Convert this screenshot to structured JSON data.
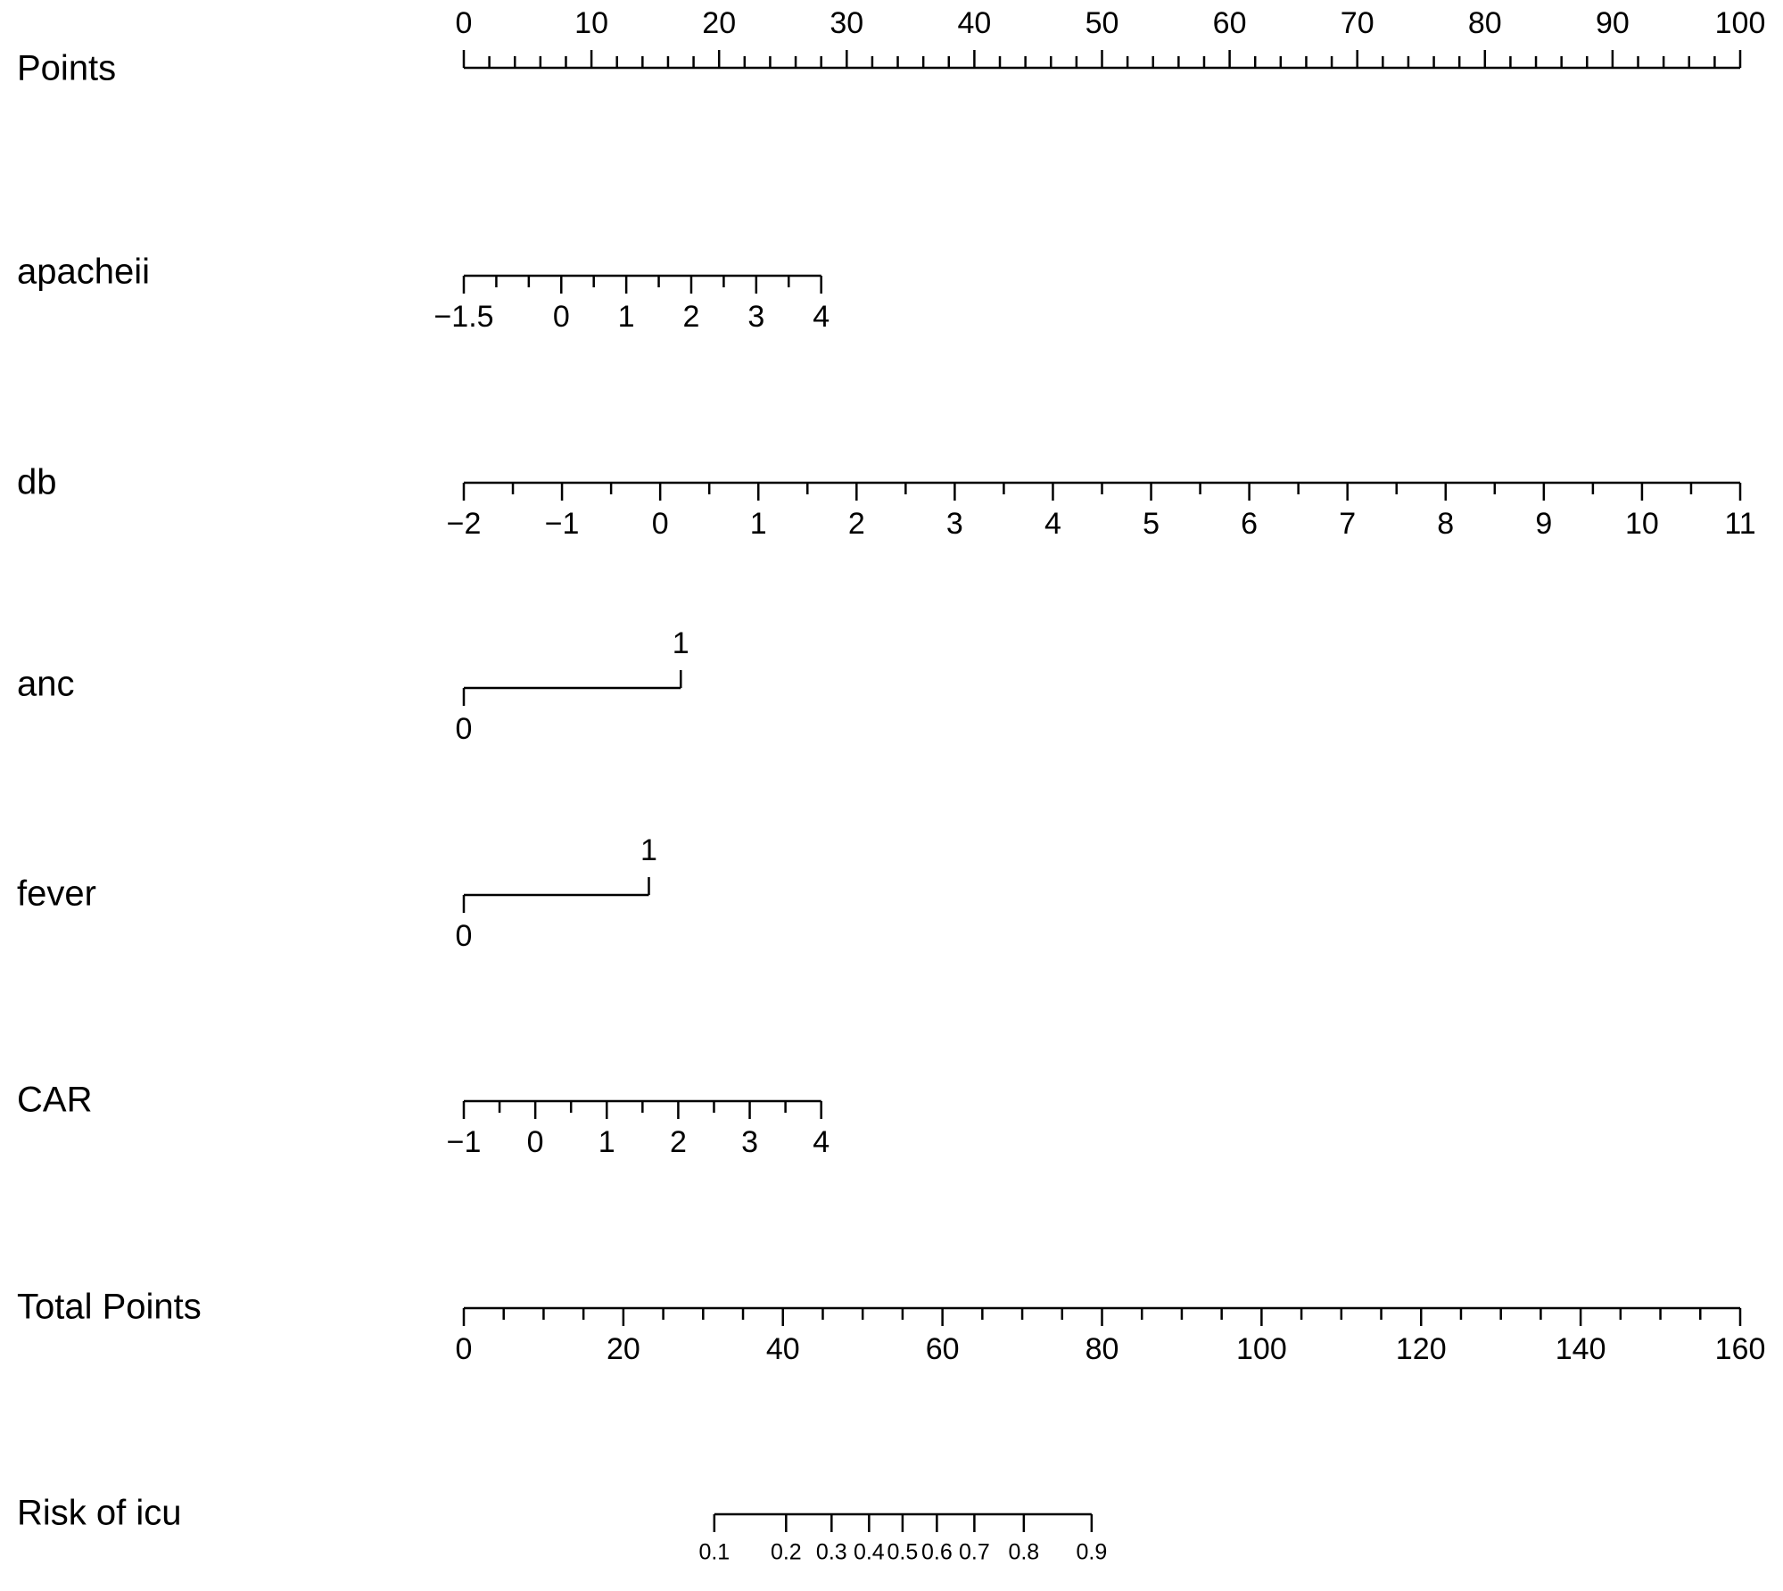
{
  "chart_data": {
    "type": "nomogram",
    "axes": [
      {
        "label": "Points",
        "scale_axis": 0,
        "label_side": "above",
        "xlim": [
          0,
          100
        ],
        "ticks": [
          0,
          10,
          20,
          30,
          40,
          50,
          60,
          70,
          80,
          90,
          100
        ],
        "minor_ticks": [
          2,
          4,
          6,
          8,
          12,
          14,
          16,
          18,
          22,
          24,
          26,
          28,
          32,
          34,
          36,
          38,
          42,
          44,
          46,
          48,
          52,
          54,
          56,
          58,
          62,
          64,
          66,
          68,
          72,
          74,
          76,
          78,
          82,
          84,
          86,
          88,
          92,
          94,
          96,
          98
        ]
      },
      {
        "label": "apacheii",
        "scale_axis": 0,
        "label_side": "below",
        "xlim": [
          -1.5,
          4
        ],
        "points_lim": [
          0,
          28
        ],
        "ticks": [
          {
            "value": -1.5,
            "label": "−1.5"
          },
          0,
          1,
          2,
          3,
          4
        ],
        "minor_ticks": [
          -1,
          -0.5,
          0.5,
          1.5,
          2.5,
          3.5
        ]
      },
      {
        "label": "db",
        "scale_axis": 0,
        "label_side": "below",
        "xlim": [
          -2,
          11
        ],
        "points_lim": [
          0,
          100
        ],
        "ticks": [
          {
            "value": -2,
            "label": "−2"
          },
          {
            "value": -1,
            "label": "−1"
          },
          0,
          1,
          2,
          3,
          4,
          5,
          6,
          7,
          8,
          9,
          10,
          11
        ],
        "minor_ticks": [
          -1.5,
          -0.5,
          0.5,
          1.5,
          2.5,
          3.5,
          4.5,
          5.5,
          6.5,
          7.5,
          8.5,
          9.5,
          10.5
        ]
      },
      {
        "label": "anc",
        "scale_axis": 0,
        "label_side": "alternate",
        "xlim": [
          0,
          1
        ],
        "points_lim": [
          0,
          17
        ],
        "ticks": [
          0,
          1
        ],
        "minor_ticks": []
      },
      {
        "label": "fever",
        "scale_axis": 0,
        "label_side": "alternate",
        "xlim": [
          0,
          1
        ],
        "points_lim": [
          0,
          14.5
        ],
        "ticks": [
          0,
          1
        ],
        "minor_ticks": []
      },
      {
        "label": "CAR",
        "scale_axis": 0,
        "label_side": "below",
        "xlim": [
          -1,
          4
        ],
        "points_lim": [
          0,
          28
        ],
        "ticks": [
          {
            "value": -1,
            "label": "−1"
          },
          0,
          1,
          2,
          3,
          4
        ],
        "minor_ticks": [
          -0.5,
          0.5,
          1.5,
          2.5,
          3.5
        ]
      },
      {
        "label": "Total Points",
        "scale_axis": 6,
        "label_side": "below",
        "xlim": [
          0,
          160
        ],
        "ticks": [
          0,
          20,
          40,
          60,
          80,
          100,
          120,
          140,
          160
        ],
        "minor_ticks": [
          5,
          10,
          15,
          25,
          30,
          35,
          45,
          50,
          55,
          65,
          70,
          75,
          85,
          90,
          95,
          105,
          110,
          115,
          125,
          130,
          135,
          145,
          150,
          155
        ]
      },
      {
        "label": "Risk of icu",
        "scale_axis": 6,
        "label_side": "below",
        "small_labels": true,
        "ticks": [
          0.1,
          0.2,
          0.3,
          0.4,
          0.5,
          0.6,
          0.7,
          0.8,
          0.9
        ],
        "tick_points": [
          31.4,
          40.4,
          46.1,
          50.8,
          55.0,
          59.3,
          64.0,
          70.2,
          78.7
        ],
        "minor_ticks": []
      }
    ]
  }
}
